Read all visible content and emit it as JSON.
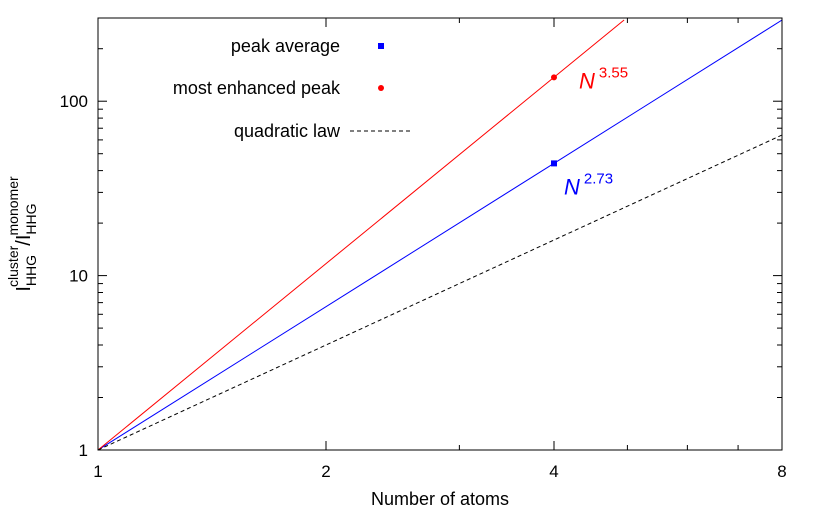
{
  "chart_data": {
    "type": "line",
    "x_scale": "log2",
    "y_scale": "log10",
    "xlim": [
      1,
      8
    ],
    "ylim": [
      1,
      300
    ],
    "xticks": [
      1,
      2,
      4,
      8
    ],
    "yticks": [
      1,
      10,
      100
    ],
    "xtick_labels": [
      "1",
      "2",
      "4",
      "8"
    ],
    "ytick_labels": [
      "1",
      "10",
      "100"
    ],
    "xlabel": "Number of atoms",
    "ylabel": {
      "base1": "I",
      "sub1": "HHG",
      "sup1": "cluster",
      "sep": "/I",
      "sub2": "HHG",
      "sup2": "monomer"
    },
    "grid": false,
    "legend_position": "top-left",
    "series": [
      {
        "name": "peak average",
        "color": "#0000ff",
        "marker": "square",
        "points": [
          {
            "x": 4,
            "y": 44
          }
        ],
        "fit": {
          "exponent": 2.73,
          "label_base": "N",
          "label_exp": "2.73",
          "x_range": [
            1,
            8
          ],
          "style": "solid"
        }
      },
      {
        "name": "most enhanced peak",
        "color": "#ff0000",
        "marker": "circle",
        "points": [
          {
            "x": 4,
            "y": 137
          }
        ],
        "fit": {
          "exponent": 3.55,
          "label_base": "N",
          "label_exp": "3.55",
          "x_range": [
            1,
            4.95
          ],
          "style": "solid"
        }
      },
      {
        "name": "quadratic law",
        "color": "#000000",
        "marker": "none",
        "points": [],
        "fit": {
          "exponent": 2,
          "x_range": [
            1,
            8
          ],
          "style": "dashed"
        }
      }
    ]
  }
}
